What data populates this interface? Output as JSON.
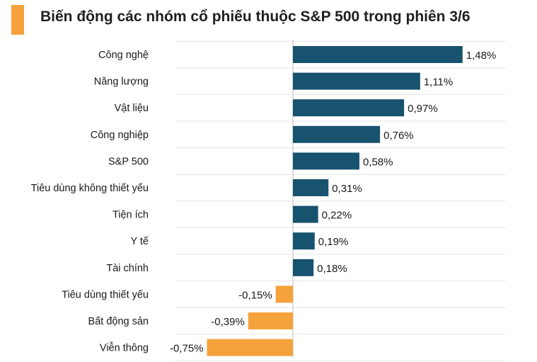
{
  "header": {
    "title": "Biến động các nhóm cổ phiếu thuộc S&P 500 trong phiên 3/6",
    "accent_color": "#f5a23c"
  },
  "chart_data": {
    "type": "bar",
    "orientation": "horizontal",
    "title": "Biến động các nhóm cổ phiếu thuộc S&P 500 trong phiên 3/6",
    "categories": [
      "Công nghệ",
      "Năng lượng",
      "Vật liệu",
      "Công nghiệp",
      "S&P 500",
      "Tiêu dùng không thiết yếu",
      "Tiện ích",
      "Y tế",
      "Tài chính",
      "Tiêu dùng thiết yếu",
      "Bất động sản",
      "Viễn thông"
    ],
    "values": [
      1.48,
      1.11,
      0.97,
      0.76,
      0.58,
      0.31,
      0.22,
      0.19,
      0.18,
      -0.15,
      -0.39,
      -0.75
    ],
    "value_labels": [
      "1,48%",
      "1,11%",
      "0,97%",
      "0,76%",
      "0,58%",
      "0,31%",
      "0,22%",
      "0,19%",
      "0,18%",
      "-0,15%",
      "-0,39%",
      "-0,75%"
    ],
    "positive_color": "#17526f",
    "negative_color": "#f5a23c",
    "grid": true,
    "legend": "none"
  }
}
